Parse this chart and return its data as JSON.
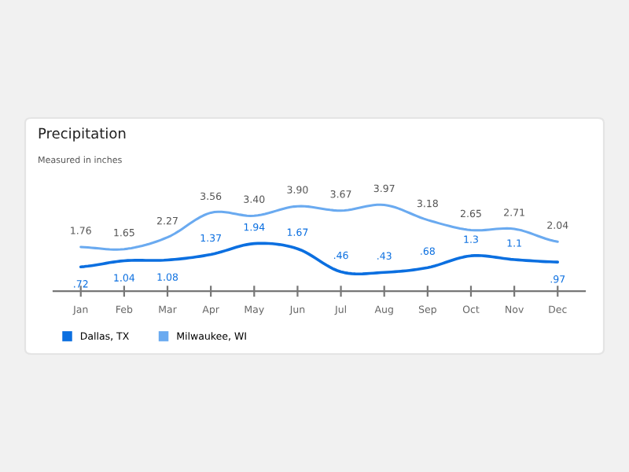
{
  "chart_data": {
    "type": "line",
    "title": "Precipitation",
    "subtitle": "Measured in inches",
    "categories": [
      "Jan",
      "Feb",
      "Mar",
      "Apr",
      "May",
      "Jun",
      "Jul",
      "Aug",
      "Sep",
      "Oct",
      "Nov",
      "Dec"
    ],
    "series": [
      {
        "name": "Dallas, TX",
        "color": "#0b6fe0",
        "values": [
          0.72,
          1.04,
          1.08,
          1.37,
          1.94,
          1.67,
          0.46,
          0.43,
          0.68,
          1.3,
          1.1,
          0.97
        ],
        "value_labels": [
          ".72",
          "1.04",
          "1.08",
          "1.37",
          "1.94",
          "1.67",
          ".46",
          ".43",
          ".68",
          "1.3",
          "1.1",
          ".97"
        ]
      },
      {
        "name": "Milwaukee, WI",
        "color": "#6aaaf0",
        "values": [
          1.76,
          1.65,
          2.27,
          3.56,
          3.4,
          3.9,
          3.67,
          3.97,
          3.18,
          2.65,
          2.71,
          2.04
        ],
        "value_labels": [
          "1.76",
          "1.65",
          "2.27",
          "3.56",
          "3.40",
          "3.90",
          "3.67",
          "3.97",
          "3.18",
          "2.65",
          "2.71",
          "2.04"
        ]
      }
    ],
    "legend": "bottom left",
    "grid": false,
    "marker": "none",
    "line_style": "solid"
  }
}
